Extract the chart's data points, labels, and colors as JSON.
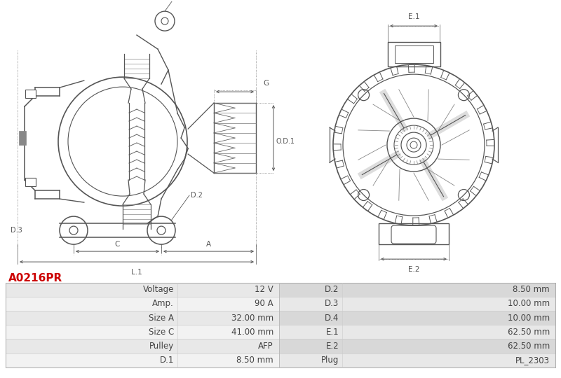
{
  "title": "A0216PR",
  "title_color": "#cc0000",
  "background_color": "#ffffff",
  "table_rows": [
    [
      "Voltage",
      "12 V",
      "D.2",
      "8.50 mm"
    ],
    [
      "Amp.",
      "90 A",
      "D.3",
      "10.00 mm"
    ],
    [
      "Size A",
      "32.00 mm",
      "D.4",
      "10.00 mm"
    ],
    [
      "Size C",
      "41.00 mm",
      "E.1",
      "62.50 mm"
    ],
    [
      "Pulley",
      "AFP",
      "E.2",
      "62.50 mm"
    ],
    [
      "D.1",
      "8.50 mm",
      "Plug",
      "PL_2303"
    ]
  ],
  "draw_color": "#555555",
  "dim_color": "#555555",
  "text_color": "#444444"
}
